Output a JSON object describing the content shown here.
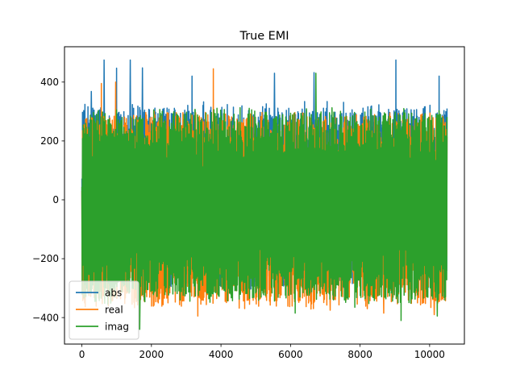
{
  "chart_data": {
    "type": "line",
    "title": "True EMI",
    "xlabel": "",
    "ylabel": "",
    "xlim": [
      -500,
      11000
    ],
    "ylim": [
      -490,
      520
    ],
    "x_ticks": [
      0,
      2000,
      4000,
      6000,
      8000,
      10000
    ],
    "y_ticks": [
      -400,
      -200,
      0,
      200,
      400
    ],
    "x_tick_labels": [
      "0",
      "2000",
      "4000",
      "6000",
      "8000",
      "10000"
    ],
    "y_tick_labels": [
      "−400",
      "−200",
      "0",
      "200",
      "400"
    ],
    "grid": false,
    "legend_position": "lower-left",
    "x_domain": [
      0,
      10500
    ],
    "n_points": 10500,
    "series": [
      {
        "name": "abs",
        "color": "#1f77b4",
        "typical_range": [
          -300,
          320
        ],
        "max_observed": 475,
        "min_observed": -300,
        "notable_points": [
          [
            270,
            368
          ],
          [
            640,
            475
          ],
          [
            1000,
            447
          ],
          [
            1390,
            475
          ],
          [
            1740,
            448
          ],
          [
            3170,
            420
          ],
          [
            5540,
            430
          ],
          [
            6680,
            432
          ],
          [
            9030,
            475
          ],
          [
            10270,
            420
          ]
        ]
      },
      {
        "name": "real",
        "color": "#ff7f0e",
        "typical_range": [
          -360,
          290
        ],
        "max_observed": 445,
        "min_observed": -405,
        "notable_points": [
          [
            560,
            395
          ],
          [
            970,
            400
          ],
          [
            3780,
            445
          ],
          [
            3330,
            -395
          ],
          [
            4820,
            -355
          ],
          [
            7140,
            -375
          ],
          [
            8210,
            -370
          ],
          [
            8680,
            -385
          ],
          [
            10130,
            -390
          ]
        ]
      },
      {
        "name": "imag",
        "color": "#2ca02c",
        "typical_range": [
          -340,
          300
        ],
        "max_observed": 430,
        "min_observed": -440,
        "notable_points": [
          [
            1660,
            -440
          ],
          [
            2620,
            -320
          ],
          [
            6130,
            -385
          ],
          [
            6730,
            430
          ],
          [
            7850,
            -365
          ],
          [
            9180,
            -410
          ],
          [
            10220,
            -395
          ]
        ]
      }
    ]
  }
}
